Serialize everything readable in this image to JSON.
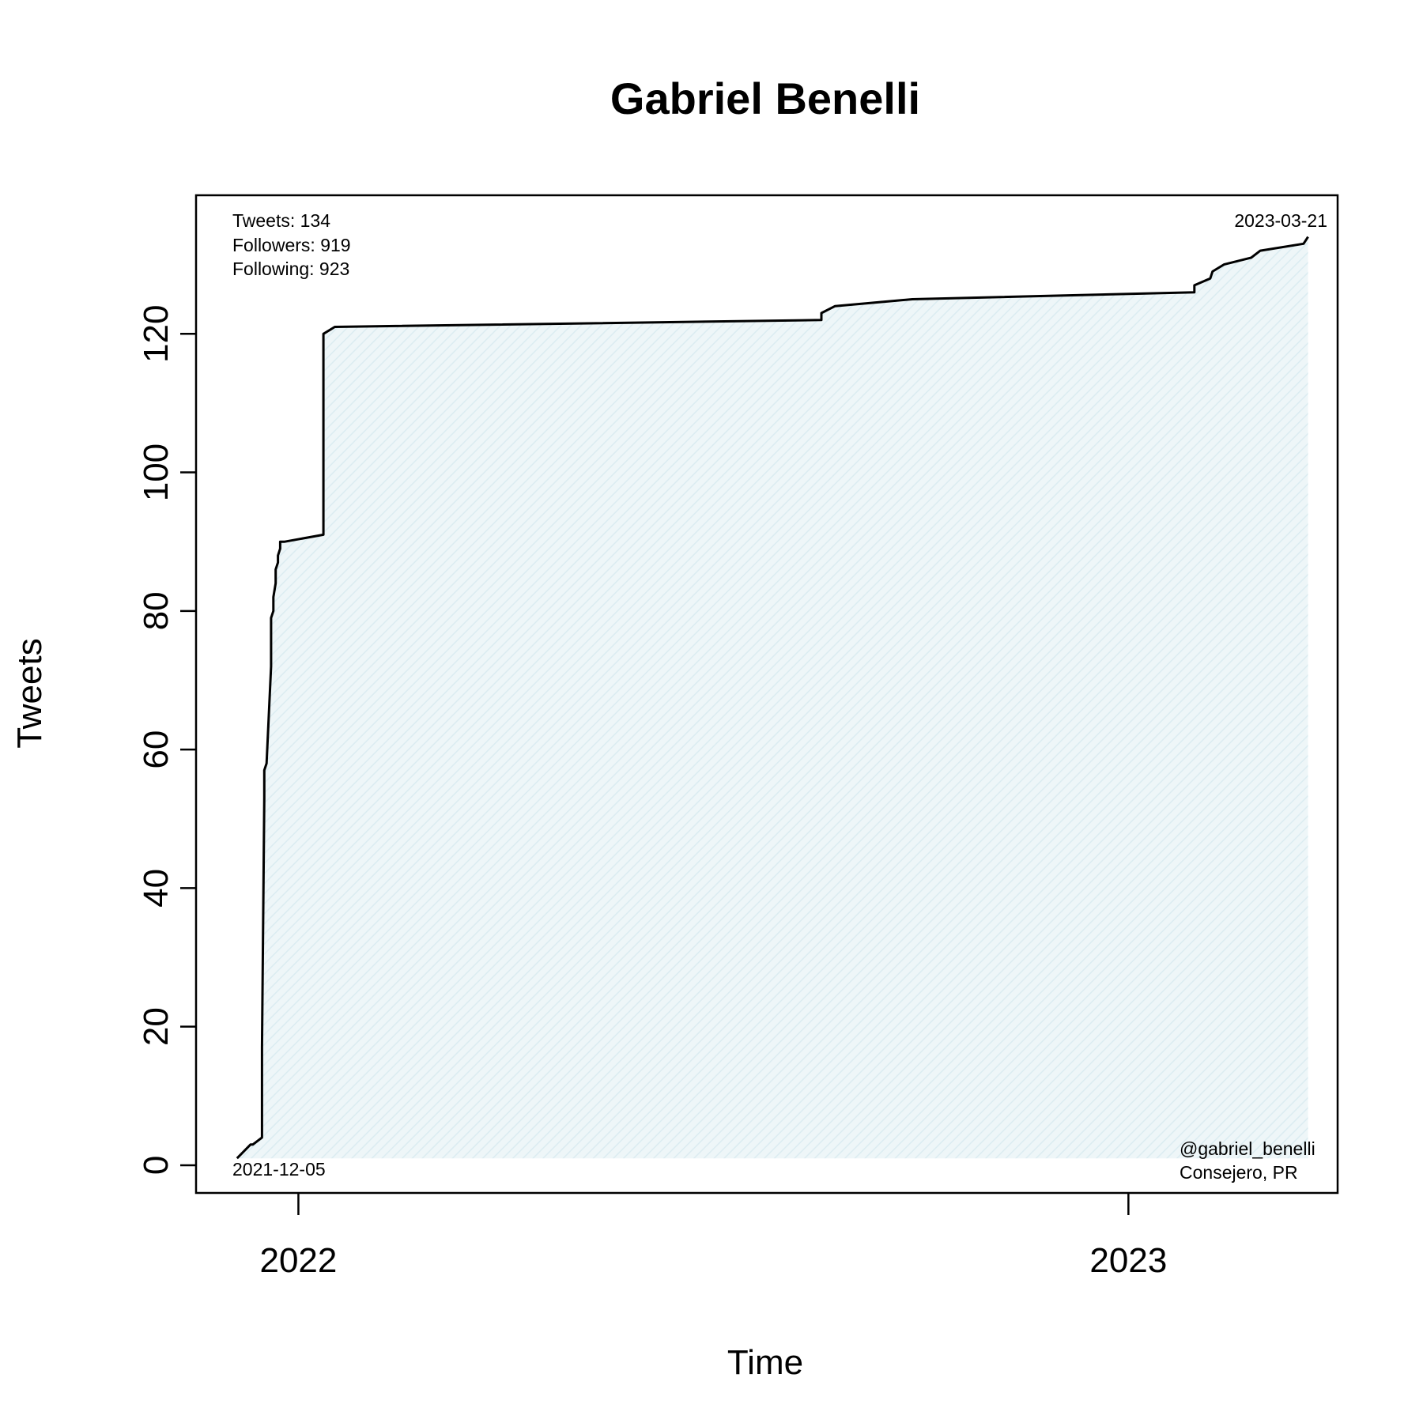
{
  "chart_data": {
    "type": "area",
    "title": "Gabriel Benelli",
    "xlabel": "Time",
    "ylabel": "Tweets",
    "x_ticks": [
      "2022",
      "2023"
    ],
    "y_ticks": [
      0,
      20,
      40,
      60,
      80,
      100,
      120
    ],
    "ylim": [
      -4,
      140
    ],
    "xlim": [
      "2021-11-17",
      "2023-04-03"
    ],
    "grid": false,
    "fill_color": "#e6f2f5",
    "line_color": "#000000",
    "stats": {
      "tweets": "Tweets: 134",
      "followers": "Followers: 919",
      "following": "Following: 923"
    },
    "start_label": "2021-12-05",
    "end_label": "2023-03-21",
    "handle": "@gabriel_benelli",
    "subtitle_note": "Consejero, PR",
    "series": [
      {
        "x": [
          "2021-12-05",
          "2021-12-11",
          "2021-12-12",
          "2021-12-16",
          "2021-12-16",
          "2021-12-17",
          "2021-12-17",
          "2021-12-18",
          "2021-12-20",
          "2021-12-20",
          "2021-12-21",
          "2021-12-21",
          "2021-12-22",
          "2021-12-22",
          "2021-12-23",
          "2021-12-23",
          "2021-12-24",
          "2021-12-24",
          "2021-12-25",
          "2021-12-26",
          "2022-01-12",
          "2022-01-12",
          "2022-01-17",
          "2022-08-19",
          "2022-08-19",
          "2022-08-25",
          "2022-09-28",
          "2023-01-30",
          "2023-01-30",
          "2023-02-06",
          "2023-02-07",
          "2023-02-12",
          "2023-02-24",
          "2023-02-28",
          "2023-03-19",
          "2023-03-21"
        ],
        "y": [
          1,
          3,
          3,
          4,
          17,
          53,
          57,
          58,
          72,
          79,
          80,
          82,
          84,
          86,
          87,
          88,
          89,
          90,
          90,
          90,
          91,
          120,
          121,
          122,
          123,
          124,
          125,
          126,
          127,
          128,
          129,
          130,
          131,
          132,
          133,
          134
        ]
      }
    ]
  }
}
